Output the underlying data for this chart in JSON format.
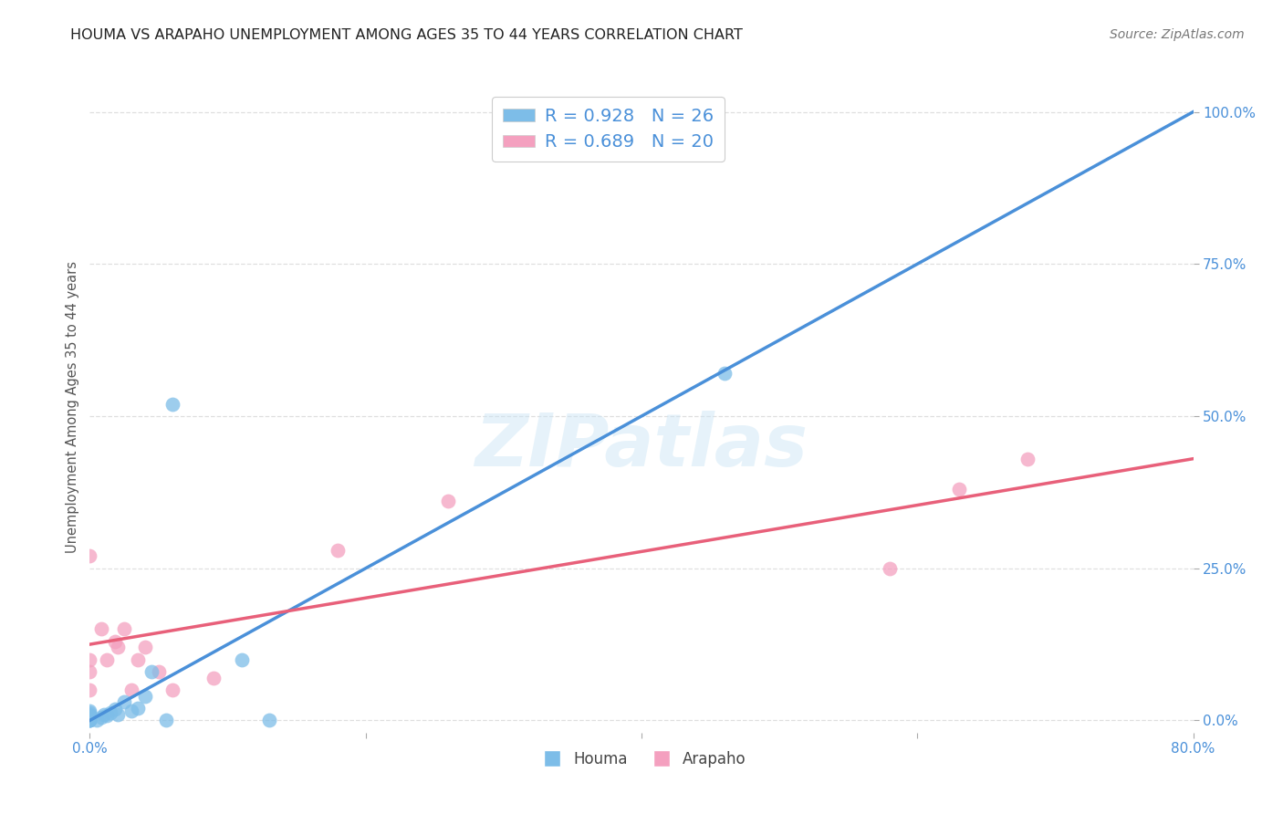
{
  "title": "HOUMA VS ARAPAHO UNEMPLOYMENT AMONG AGES 35 TO 44 YEARS CORRELATION CHART",
  "source": "Source: ZipAtlas.com",
  "ylabel": "Unemployment Among Ages 35 to 44 years",
  "xlim": [
    0.0,
    0.8
  ],
  "ylim": [
    -0.02,
    1.05
  ],
  "xticks": [
    0.0,
    0.2,
    0.4,
    0.6,
    0.8
  ],
  "xticklabels": [
    "0.0%",
    "",
    "",
    "",
    "80.0%"
  ],
  "yticks": [
    0.0,
    0.25,
    0.5,
    0.75,
    1.0
  ],
  "yticklabels": [
    "0.0%",
    "25.0%",
    "50.0%",
    "75.0%",
    "100.0%"
  ],
  "houma_color": "#7dbde8",
  "arapaho_color": "#f4a0bf",
  "houma_line_color": "#4a90d9",
  "arapaho_line_color": "#e8607a",
  "diagonal_color": "#c8c8c8",
  "houma_R": 0.928,
  "houma_N": 26,
  "arapaho_R": 0.689,
  "arapaho_N": 20,
  "legend_text_color": "#4a90d9",
  "background_color": "#ffffff",
  "grid_color": "#d8d8d8",
  "houma_x": [
    0.0,
    0.0,
    0.0,
    0.0,
    0.0,
    0.0,
    0.0,
    0.0,
    0.0,
    0.005,
    0.008,
    0.01,
    0.012,
    0.015,
    0.018,
    0.02,
    0.025,
    0.03,
    0.035,
    0.04,
    0.045,
    0.055,
    0.06,
    0.11,
    0.13,
    0.46
  ],
  "houma_y": [
    0.0,
    0.0,
    0.0,
    0.0,
    0.005,
    0.008,
    0.01,
    0.012,
    0.015,
    0.0,
    0.005,
    0.01,
    0.008,
    0.012,
    0.018,
    0.01,
    0.03,
    0.015,
    0.02,
    0.04,
    0.08,
    0.0,
    0.52,
    0.1,
    0.0,
    0.57
  ],
  "arapaho_x": [
    0.0,
    0.0,
    0.0,
    0.0,
    0.008,
    0.012,
    0.018,
    0.02,
    0.025,
    0.03,
    0.035,
    0.04,
    0.05,
    0.06,
    0.09,
    0.18,
    0.26,
    0.58,
    0.63,
    0.68
  ],
  "arapaho_y": [
    0.05,
    0.08,
    0.1,
    0.27,
    0.15,
    0.1,
    0.13,
    0.12,
    0.15,
    0.05,
    0.1,
    0.12,
    0.08,
    0.05,
    0.07,
    0.28,
    0.36,
    0.25,
    0.38,
    0.43
  ],
  "houma_line_x": [
    0.0,
    0.8
  ],
  "houma_line_y": [
    0.0,
    1.0
  ],
  "arapaho_line_x": [
    0.0,
    0.8
  ],
  "arapaho_line_y": [
    0.125,
    0.43
  ]
}
